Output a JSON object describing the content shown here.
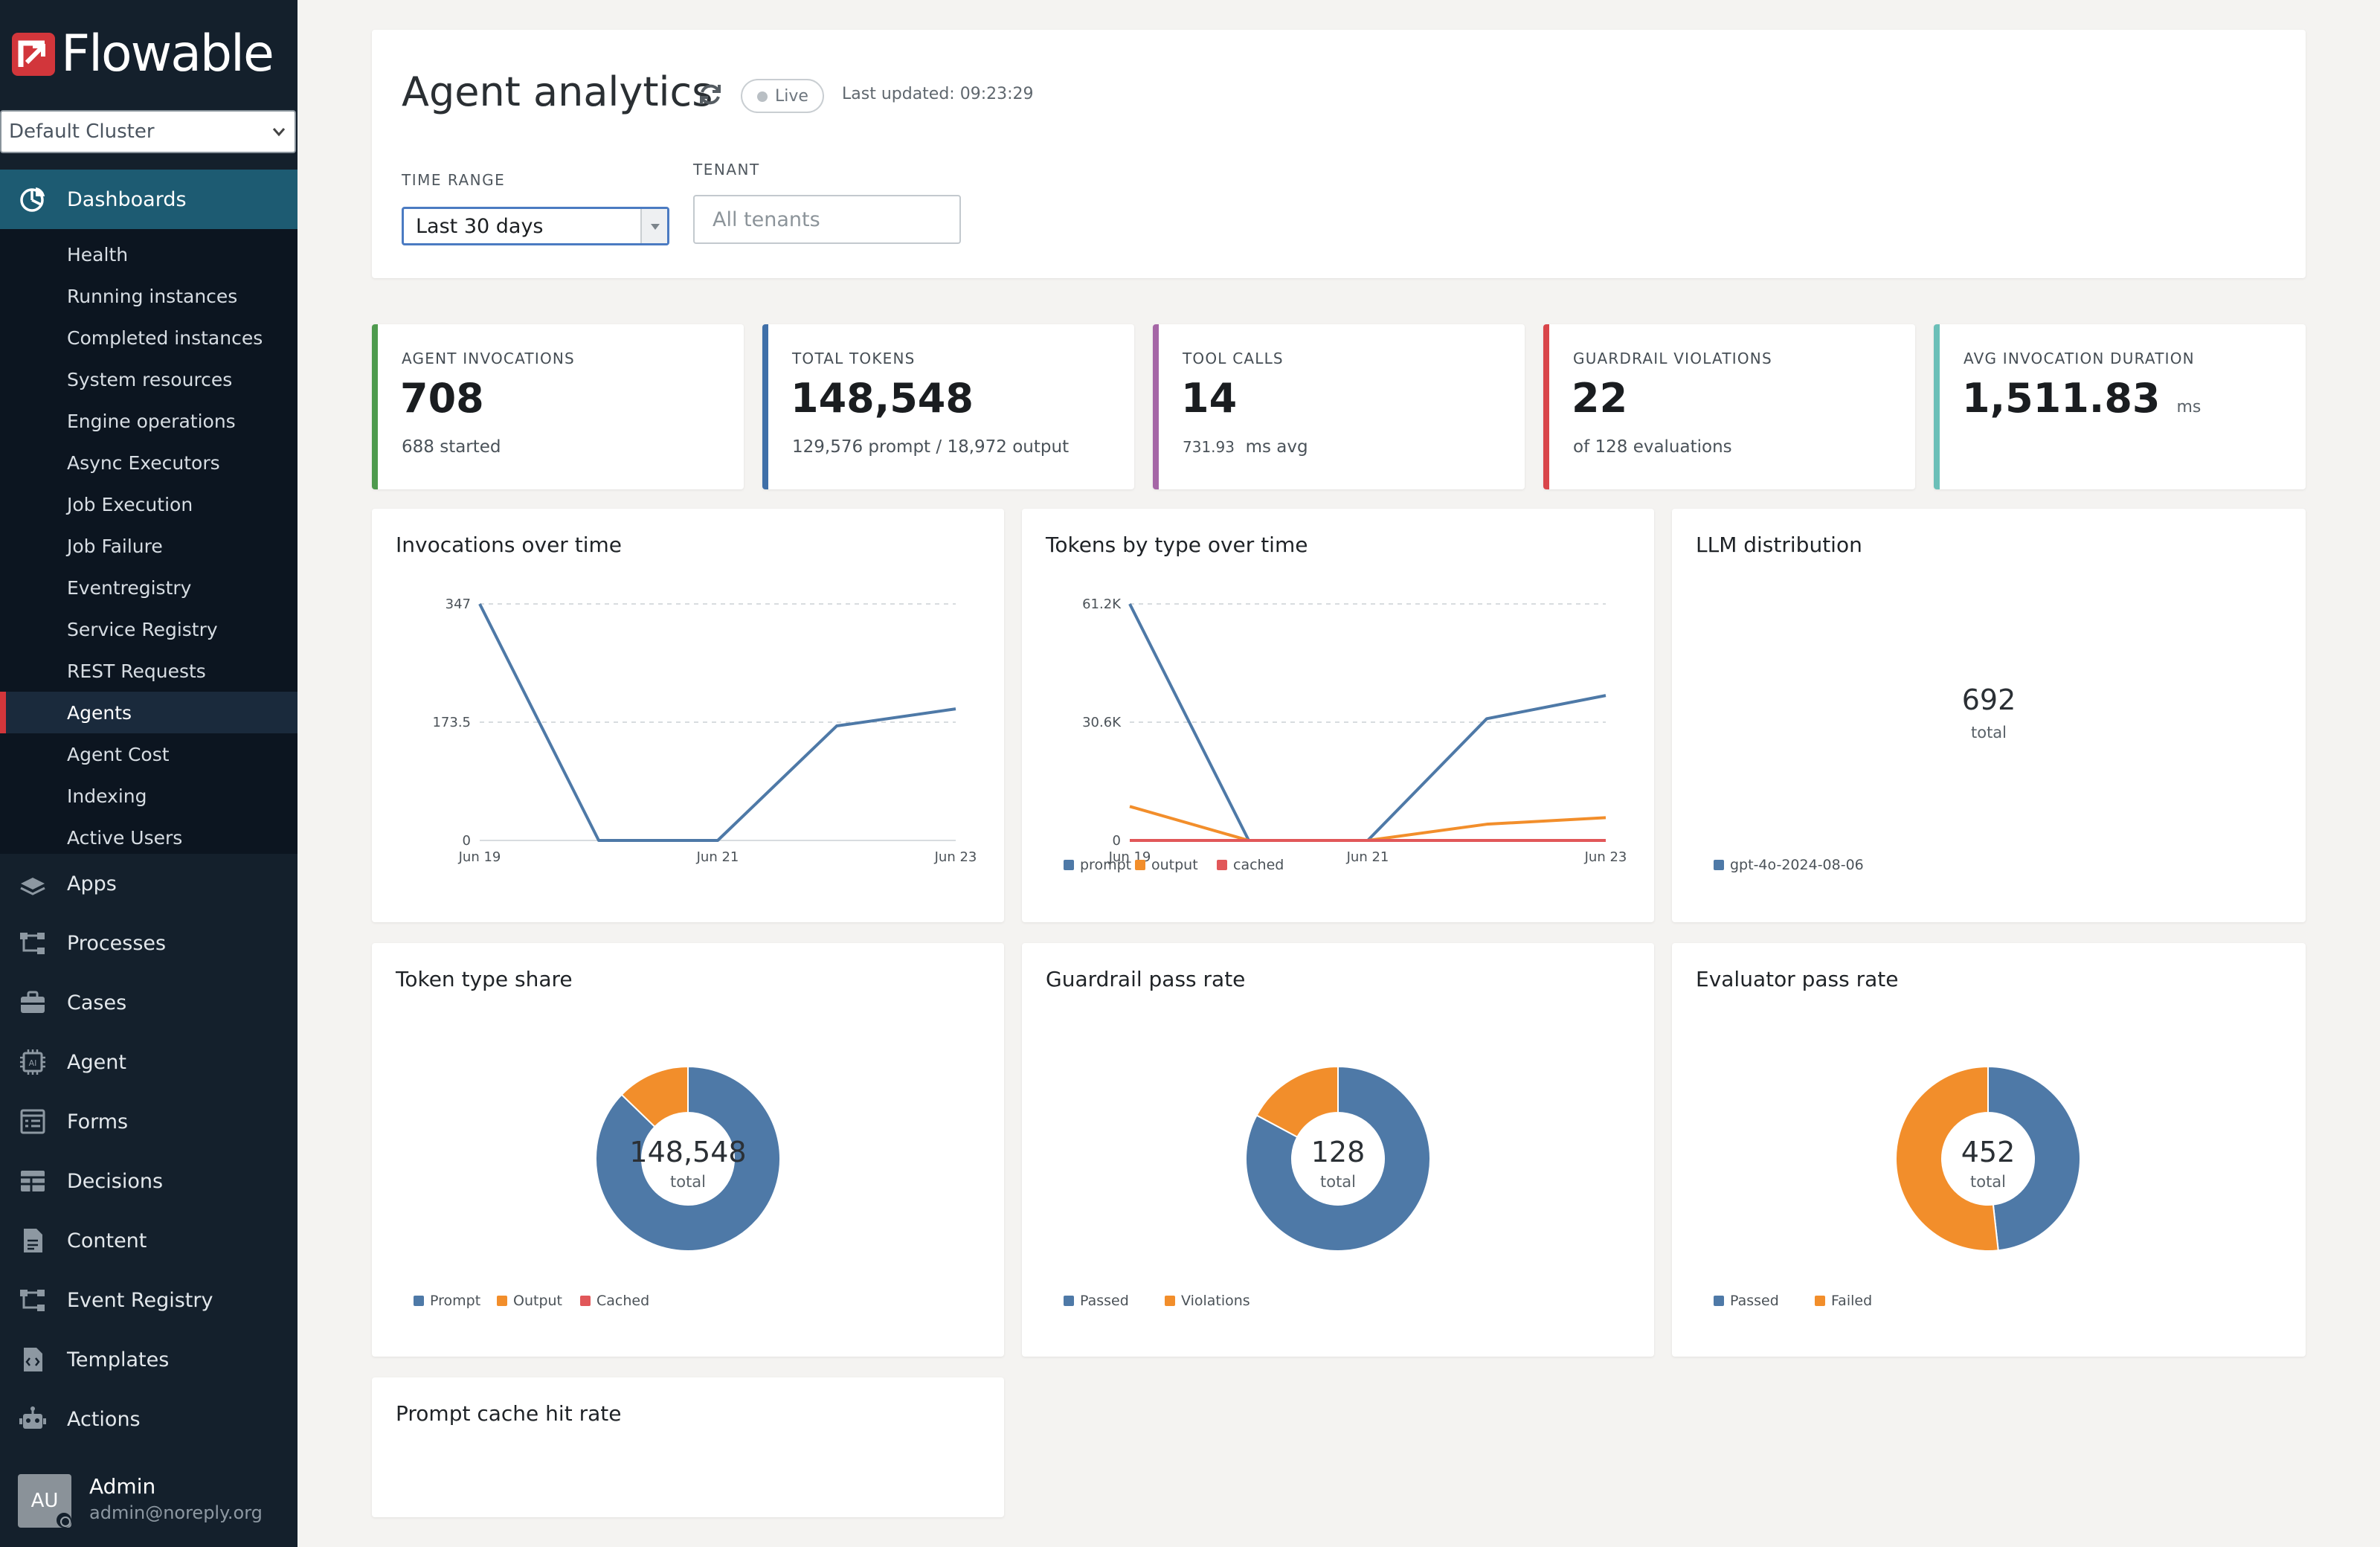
{
  "brand": {
    "logo_text": "Flowable",
    "accent": "#d2363b"
  },
  "sidebar": {
    "cluster_value": "Default Cluster",
    "dashboards_label": "Dashboards",
    "sub_items": [
      {
        "label": "Health"
      },
      {
        "label": "Running instances"
      },
      {
        "label": "Completed instances"
      },
      {
        "label": "System resources"
      },
      {
        "label": "Engine operations"
      },
      {
        "label": "Async Executors"
      },
      {
        "label": "Job Execution"
      },
      {
        "label": "Job Failure"
      },
      {
        "label": "Eventregistry"
      },
      {
        "label": "Service Registry"
      },
      {
        "label": "REST Requests"
      },
      {
        "label": "Agents",
        "active": true
      },
      {
        "label": "Agent Cost"
      },
      {
        "label": "Indexing"
      },
      {
        "label": "Active Users"
      }
    ],
    "main_items": [
      {
        "label": "Apps",
        "icon": "apps-icon"
      },
      {
        "label": "Processes",
        "icon": "processes-icon"
      },
      {
        "label": "Cases",
        "icon": "briefcase-icon"
      },
      {
        "label": "Agent",
        "icon": "ai-chip-icon"
      },
      {
        "label": "Forms",
        "icon": "form-icon"
      },
      {
        "label": "Decisions",
        "icon": "table-icon"
      },
      {
        "label": "Content",
        "icon": "document-icon"
      },
      {
        "label": "Event Registry",
        "icon": "event-icon"
      },
      {
        "label": "Templates",
        "icon": "code-file-icon"
      },
      {
        "label": "Actions",
        "icon": "robot-icon"
      }
    ],
    "user": {
      "initials": "AU",
      "name": "Admin",
      "email": "admin@noreply.org"
    }
  },
  "header": {
    "title": "Agent analytics",
    "live_label": "Live",
    "last_updated": "Last updated: 09:23:29",
    "time_range_label": "TIME RANGE",
    "time_range_value": "Last 30 days",
    "tenant_label": "TENANT",
    "tenant_placeholder": "All tenants"
  },
  "kpis": [
    {
      "label": "AGENT INVOCATIONS",
      "value": "708",
      "sub": "688 started",
      "color": "#4e9a4e"
    },
    {
      "label": "TOTAL TOKENS",
      "value": "148,548",
      "sub": "129,576 prompt / 18,972 output",
      "color": "#3f6fa8"
    },
    {
      "label": "TOOL CALLS",
      "value": "14",
      "sub_value": "731.93",
      "sub": "ms avg",
      "color": "#a566a6"
    },
    {
      "label": "GUARDRAIL VIOLATIONS",
      "value": "22",
      "sub": "of 128 evaluations",
      "color": "#d9454a"
    },
    {
      "label": "AVG INVOCATION DURATION",
      "value": "1,511.83",
      "unit": "ms",
      "color": "#6bbfb8"
    }
  ],
  "colors": {
    "blue": "#4e79a7",
    "orange": "#f28e2b",
    "red": "#e15759"
  },
  "chart_data": [
    {
      "id": "invocations",
      "type": "line",
      "title": "Invocations over time",
      "x": [
        "Jun 19",
        "Jun 20",
        "Jun 21",
        "Jun 22",
        "Jun 23"
      ],
      "x_tick_labels": [
        "Jun 19",
        "Jun 21",
        "Jun 23"
      ],
      "y_tick_labels": [
        "0",
        "173.5",
        "347"
      ],
      "ylim": [
        0,
        347
      ],
      "series": [
        {
          "values": [
            347,
            0,
            0,
            168,
            193
          ]
        }
      ],
      "grid": true
    },
    {
      "id": "tokens",
      "type": "line",
      "title": "Tokens by type over time",
      "x": [
        "Jun 19",
        "Jun 20",
        "Jun 21",
        "Jun 22",
        "Jun 23"
      ],
      "x_tick_labels": [
        "Jun 19",
        "Jun 21",
        "Jun 23"
      ],
      "y_tick_labels": [
        "0",
        "30.6K",
        "61.2K"
      ],
      "ylim": [
        0,
        61200
      ],
      "series": [
        {
          "name": "prompt",
          "values": [
            61200,
            0,
            0,
            31500,
            37500
          ]
        },
        {
          "name": "output",
          "values": [
            8800,
            0,
            0,
            4200,
            5900
          ]
        },
        {
          "name": "cached",
          "values": [
            0,
            0,
            0,
            0,
            0
          ]
        }
      ],
      "legend": "bottom-left",
      "grid": true
    },
    {
      "id": "llm",
      "type": "pie",
      "title": "LLM distribution",
      "center_value": "692",
      "center_label": "total",
      "labels": [
        "gpt-4o-2024-08-06"
      ],
      "values": [
        692
      ]
    },
    {
      "id": "tokenshare",
      "type": "pie",
      "title": "Token type share",
      "center_value": "148,548",
      "center_label": "total",
      "labels": [
        "Prompt",
        "Output",
        "Cached"
      ],
      "values": [
        129576,
        18972,
        0
      ]
    },
    {
      "id": "guardrail",
      "type": "pie",
      "title": "Guardrail pass rate",
      "center_value": "128",
      "center_label": "total",
      "labels": [
        "Passed",
        "Violations"
      ],
      "values": [
        106,
        22
      ]
    },
    {
      "id": "evaluator",
      "type": "pie",
      "title": "Evaluator pass rate",
      "center_value": "452",
      "center_label": "total",
      "labels": [
        "Passed",
        "Failed"
      ],
      "values": [
        218,
        234
      ]
    }
  ],
  "cache_card": {
    "title": "Prompt cache hit rate"
  }
}
